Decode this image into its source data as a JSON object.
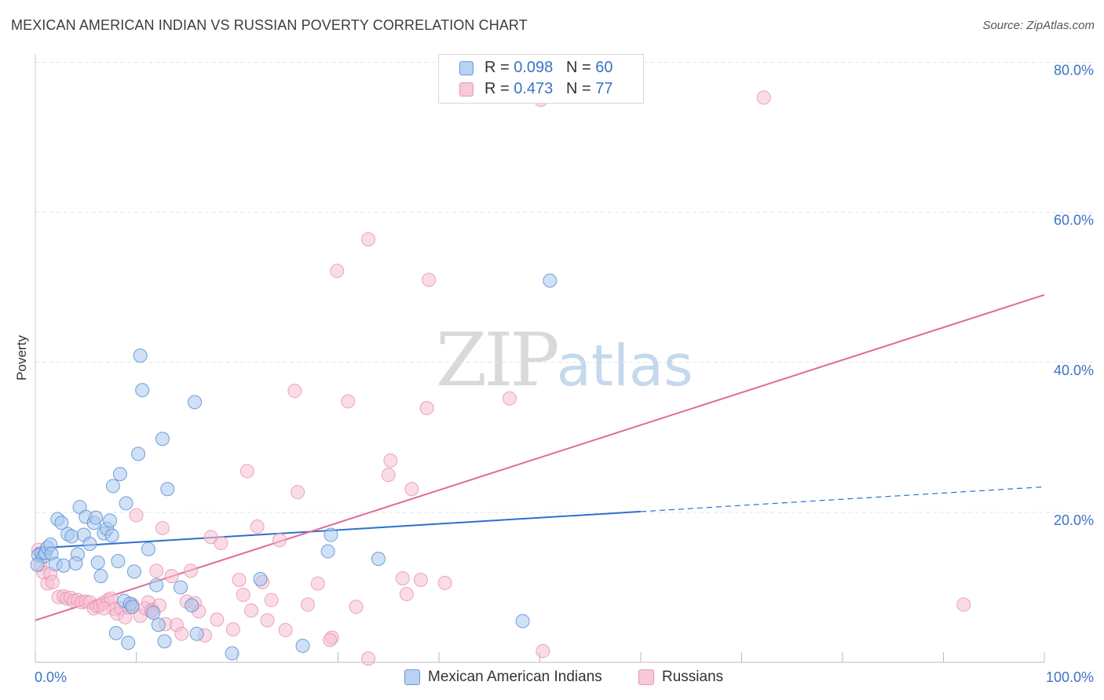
{
  "header": {
    "title": "MEXICAN AMERICAN INDIAN VS RUSSIAN POVERTY CORRELATION CHART",
    "source": "Source: ZipAtlas.com"
  },
  "watermark": {
    "zip": "ZIP",
    "atlas": "atlas"
  },
  "legend": {
    "rows": [
      {
        "r_label": "R =",
        "r_value": "0.098",
        "n_label": "N =",
        "n_value": "60"
      },
      {
        "r_label": "R =",
        "r_value": "0.473",
        "n_label": "N =",
        "n_value": "77"
      }
    ]
  },
  "bottom_legend": {
    "series1": "Mexican American Indians",
    "series2": "Russians"
  },
  "colors": {
    "blue_fill": "#a9c8ef",
    "blue_stroke": "#5b8fd6",
    "blue_line": "#2f6fcb",
    "pink_fill": "#f6bfd1",
    "pink_stroke": "#e98fad",
    "pink_line": "#e06b97",
    "tick_text": "#3b73c4",
    "grid": "#e3e3e3"
  },
  "chart_data": {
    "type": "scatter",
    "title": "MEXICAN AMERICAN INDIAN VS RUSSIAN POVERTY CORRELATION CHART",
    "xlabel": "",
    "ylabel": "Poverty",
    "xlim": [
      0,
      100
    ],
    "ylim": [
      0,
      80
    ],
    "x_tick_labels": [
      "0.0%",
      "100.0%"
    ],
    "y_ticks": [
      20,
      40,
      60,
      80
    ],
    "y_tick_labels": [
      "20.0%",
      "40.0%",
      "60.0%",
      "80.0%"
    ],
    "grid": true,
    "series": [
      {
        "name": "Mexican American Indians",
        "R": 0.098,
        "N": 60,
        "trend": {
          "x0": 0,
          "y0": 15.2,
          "x1": 60,
          "y1": 20.1,
          "dashed_to_x": 100,
          "dashed_to_y": 23.4
        },
        "points": [
          [
            0.3,
            14.3
          ],
          [
            0.6,
            14.5
          ],
          [
            0.8,
            14.1
          ],
          [
            1.0,
            14.6
          ],
          [
            1.2,
            15.3
          ],
          [
            1.5,
            15.7
          ],
          [
            1.6,
            14.5
          ],
          [
            2.0,
            13.1
          ],
          [
            2.2,
            19.1
          ],
          [
            2.6,
            18.6
          ],
          [
            2.8,
            12.9
          ],
          [
            3.2,
            17.1
          ],
          [
            3.6,
            16.8
          ],
          [
            4.2,
            14.4
          ],
          [
            4.0,
            13.2
          ],
          [
            4.4,
            20.7
          ],
          [
            4.8,
            17.0
          ],
          [
            5.0,
            19.4
          ],
          [
            5.4,
            15.8
          ],
          [
            5.8,
            18.6
          ],
          [
            6.0,
            19.3
          ],
          [
            6.2,
            13.3
          ],
          [
            6.5,
            11.5
          ],
          [
            6.8,
            17.2
          ],
          [
            7.1,
            17.8
          ],
          [
            7.4,
            18.9
          ],
          [
            7.6,
            16.9
          ],
          [
            7.7,
            23.5
          ],
          [
            8.0,
            3.9
          ],
          [
            8.2,
            13.5
          ],
          [
            8.4,
            25.1
          ],
          [
            8.8,
            8.2
          ],
          [
            9.0,
            21.2
          ],
          [
            9.2,
            2.6
          ],
          [
            9.4,
            7.8
          ],
          [
            9.6,
            7.4
          ],
          [
            9.8,
            12.1
          ],
          [
            10.2,
            27.8
          ],
          [
            10.4,
            40.9
          ],
          [
            10.6,
            36.3
          ],
          [
            11.2,
            15.1
          ],
          [
            11.7,
            6.6
          ],
          [
            12.0,
            10.3
          ],
          [
            12.2,
            5.0
          ],
          [
            12.6,
            29.8
          ],
          [
            12.8,
            2.8
          ],
          [
            13.1,
            23.1
          ],
          [
            14.4,
            10.0
          ],
          [
            15.5,
            7.6
          ],
          [
            15.8,
            34.7
          ],
          [
            16.0,
            3.8
          ],
          [
            19.5,
            1.2
          ],
          [
            22.3,
            11.1
          ],
          [
            26.5,
            2.2
          ],
          [
            29.0,
            14.8
          ],
          [
            29.3,
            17.0
          ],
          [
            34.0,
            13.8
          ],
          [
            48.3,
            5.5
          ],
          [
            51.0,
            50.9
          ],
          [
            0.2,
            13.0
          ]
        ]
      },
      {
        "name": "Russians",
        "R": 0.473,
        "N": 77,
        "trend": {
          "x0": 0,
          "y0": 5.6,
          "x1": 100,
          "y1": 49.0
        },
        "points": [
          [
            0.3,
            15.0
          ],
          [
            0.5,
            13.0
          ],
          [
            0.8,
            12.0
          ],
          [
            1.2,
            10.5
          ],
          [
            1.5,
            11.8
          ],
          [
            1.7,
            10.7
          ],
          [
            2.3,
            8.7
          ],
          [
            2.8,
            8.8
          ],
          [
            3.1,
            8.5
          ],
          [
            3.5,
            8.6
          ],
          [
            3.8,
            8.2
          ],
          [
            4.2,
            8.3
          ],
          [
            4.6,
            8.0
          ],
          [
            5.0,
            8.1
          ],
          [
            5.4,
            8.0
          ],
          [
            5.8,
            7.2
          ],
          [
            6.1,
            7.5
          ],
          [
            6.4,
            7.6
          ],
          [
            6.7,
            7.9
          ],
          [
            7.2,
            8.3
          ],
          [
            7.5,
            8.5
          ],
          [
            7.8,
            7.1
          ],
          [
            8.1,
            6.5
          ],
          [
            8.5,
            7.2
          ],
          [
            8.9,
            6.0
          ],
          [
            9.3,
            7.3
          ],
          [
            9.6,
            7.7
          ],
          [
            10.0,
            19.6
          ],
          [
            10.4,
            6.2
          ],
          [
            10.9,
            7.2
          ],
          [
            11.2,
            8.0
          ],
          [
            11.6,
            7.0
          ],
          [
            12.0,
            12.2
          ],
          [
            12.3,
            7.6
          ],
          [
            12.6,
            17.9
          ],
          [
            12.9,
            5.1
          ],
          [
            13.5,
            11.5
          ],
          [
            14.0,
            5.0
          ],
          [
            14.5,
            3.8
          ],
          [
            15.0,
            8.1
          ],
          [
            15.4,
            12.2
          ],
          [
            15.8,
            7.9
          ],
          [
            16.2,
            6.8
          ],
          [
            16.8,
            3.6
          ],
          [
            17.4,
            16.7
          ],
          [
            18.0,
            5.7
          ],
          [
            18.4,
            15.9
          ],
          [
            19.6,
            4.4
          ],
          [
            20.2,
            11.0
          ],
          [
            20.6,
            9.0
          ],
          [
            21.0,
            25.5
          ],
          [
            21.4,
            6.9
          ],
          [
            22.0,
            18.1
          ],
          [
            22.5,
            10.7
          ],
          [
            23.0,
            5.6
          ],
          [
            23.4,
            8.3
          ],
          [
            24.2,
            16.3
          ],
          [
            24.8,
            4.3
          ],
          [
            25.7,
            36.2
          ],
          [
            26.0,
            22.7
          ],
          [
            27.0,
            7.7
          ],
          [
            28.0,
            10.5
          ],
          [
            29.4,
            3.3
          ],
          [
            29.9,
            52.2
          ],
          [
            31.0,
            34.8
          ],
          [
            31.8,
            7.4
          ],
          [
            33.0,
            56.4
          ],
          [
            35.0,
            25.0
          ],
          [
            35.2,
            26.9
          ],
          [
            36.4,
            11.2
          ],
          [
            37.3,
            23.1
          ],
          [
            38.2,
            11.0
          ],
          [
            38.8,
            33.9
          ],
          [
            39.0,
            51.0
          ],
          [
            40.6,
            10.6
          ],
          [
            47.0,
            35.2
          ],
          [
            50.1,
            75.0
          ]
        ]
      }
    ],
    "extra_points_pink": [
      [
        29.2,
        3.0
      ],
      [
        33.0,
        0.5
      ],
      [
        36.8,
        9.1
      ],
      [
        50.3,
        1.5
      ],
      [
        72.2,
        75.3
      ],
      [
        92.0,
        7.7
      ],
      [
        11.5,
        6.8
      ],
      [
        6.8,
        7.2
      ]
    ]
  }
}
